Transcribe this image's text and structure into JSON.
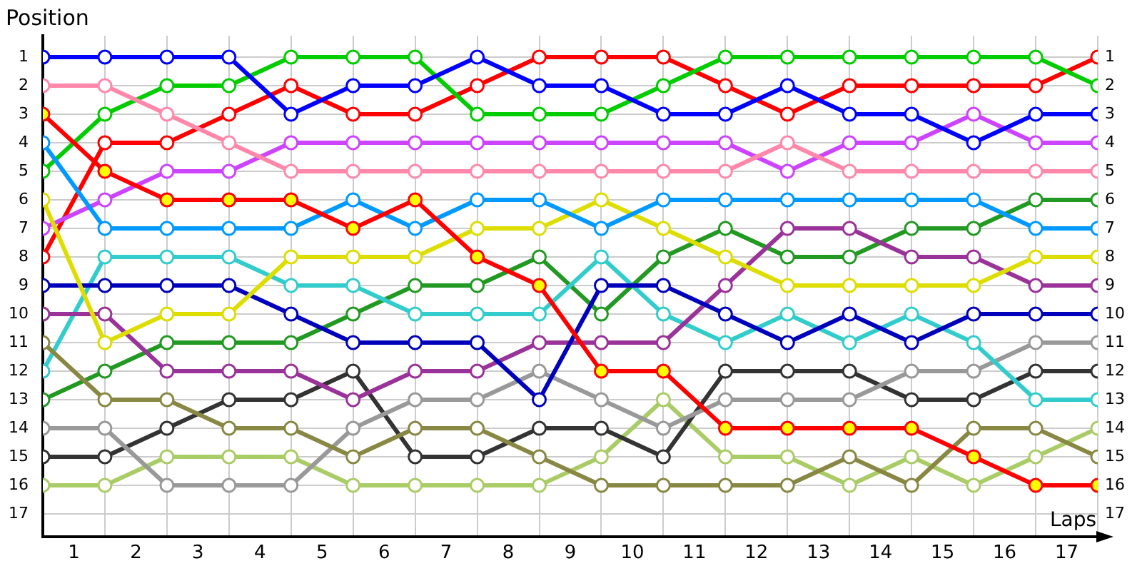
{
  "chart_data": {
    "type": "line",
    "xlabel": "Laps",
    "ylabel": "Position",
    "x": [
      0,
      1,
      2,
      3,
      4,
      5,
      6,
      7,
      8,
      9,
      10,
      11,
      12,
      13,
      14,
      15,
      16,
      17
    ],
    "series": [
      {
        "color": "#0000ff",
        "values": [
          1,
          1,
          1,
          1,
          3,
          2,
          2,
          1,
          2,
          2,
          3,
          3,
          2,
          3,
          3,
          4,
          3,
          3
        ]
      },
      {
        "color": "#ff88aa",
        "values": [
          2,
          2,
          3,
          4,
          5,
          5,
          5,
          5,
          5,
          5,
          5,
          5,
          4,
          5,
          5,
          5,
          5,
          5
        ]
      },
      {
        "color": "#ff0000",
        "colors": [
          "#ffff00",
          "#ffff00",
          "#ffff00",
          "#ffff00",
          "#ffff00",
          "#ffff00",
          "#ffff00",
          "#ffff00",
          "#ffff00",
          "#ffff00",
          "#ffff00",
          "#ffff00",
          "#ffff00",
          "#ffff00",
          "#ffff00",
          "#ffff00",
          "#ffff00",
          "#ffff00"
        ],
        "values": [
          3,
          5,
          6,
          6,
          6,
          7,
          6,
          8,
          9,
          12,
          12,
          14,
          14,
          14,
          14,
          15,
          16,
          16
        ]
      },
      {
        "color": "#0099ff",
        "values": [
          4,
          7,
          7,
          7,
          7,
          6,
          7,
          6,
          6,
          7,
          6,
          6,
          6,
          6,
          6,
          6,
          7,
          7
        ]
      },
      {
        "color": "#00cc00",
        "values": [
          5,
          3,
          2,
          2,
          1,
          1,
          1,
          3,
          3,
          3,
          2,
          1,
          1,
          1,
          1,
          1,
          1,
          2
        ]
      },
      {
        "color": "#dddd00",
        "values": [
          6,
          11,
          10,
          10,
          8,
          8,
          8,
          7,
          7,
          6,
          7,
          8,
          9,
          9,
          9,
          9,
          8,
          8
        ]
      },
      {
        "color": "#cc44ff",
        "values": [
          7,
          6,
          5,
          5,
          4,
          4,
          4,
          4,
          4,
          4,
          4,
          4,
          5,
          4,
          4,
          3,
          4,
          4
        ]
      },
      {
        "color": "#ff0000",
        "values": [
          8,
          4,
          4,
          3,
          2,
          3,
          3,
          2,
          1,
          1,
          1,
          2,
          3,
          2,
          2,
          2,
          2,
          1
        ]
      },
      {
        "color": "#0000bb",
        "values": [
          9,
          9,
          9,
          9,
          10,
          11,
          11,
          11,
          13,
          9,
          9,
          10,
          11,
          10,
          11,
          10,
          10,
          10
        ]
      },
      {
        "color": "#993399",
        "values": [
          10,
          10,
          12,
          12,
          12,
          13,
          12,
          12,
          11,
          11,
          11,
          9,
          7,
          7,
          8,
          8,
          9,
          9
        ]
      },
      {
        "color": "#888844",
        "values": [
          11,
          13,
          13,
          14,
          14,
          15,
          14,
          14,
          15,
          16,
          16,
          16,
          16,
          15,
          16,
          14,
          14,
          15
        ]
      },
      {
        "color": "#33cccc",
        "values": [
          12,
          8,
          8,
          8,
          9,
          9,
          10,
          10,
          10,
          8,
          10,
          11,
          10,
          11,
          10,
          11,
          13,
          13
        ]
      },
      {
        "color": "#229922",
        "values": [
          13,
          12,
          11,
          11,
          11,
          10,
          9,
          9,
          8,
          10,
          8,
          7,
          8,
          8,
          7,
          7,
          6,
          6
        ]
      },
      {
        "color": "#999999",
        "values": [
          14,
          14,
          16,
          16,
          16,
          14,
          13,
          13,
          12,
          13,
          14,
          13,
          13,
          13,
          12,
          12,
          11,
          11
        ]
      },
      {
        "color": "#333333",
        "values": [
          15,
          15,
          14,
          13,
          13,
          12,
          15,
          15,
          14,
          14,
          15,
          12,
          12,
          12,
          13,
          13,
          12,
          12
        ]
      },
      {
        "color": "#aacc66",
        "values": [
          16,
          16,
          15,
          15,
          15,
          16,
          16,
          16,
          16,
          15,
          13,
          15,
          15,
          16,
          15,
          16,
          15,
          14
        ]
      }
    ],
    "xlim": [
      0,
      17
    ],
    "xticks": [
      {
        "value": 0,
        "label": null
      },
      {
        "value": 0.5,
        "label": "1"
      },
      {
        "value": 1,
        "label": null
      },
      {
        "value": 1.5,
        "label": "2"
      },
      {
        "value": 2,
        "label": null
      },
      {
        "value": 2.5,
        "label": "3"
      },
      {
        "value": 3,
        "label": null
      },
      {
        "value": 3.5,
        "label": "4"
      },
      {
        "value": 4,
        "label": null
      },
      {
        "value": 4.5,
        "label": "5"
      },
      {
        "value": 5,
        "label": null
      },
      {
        "value": 5.5,
        "label": "6"
      },
      {
        "value": 6,
        "label": null
      },
      {
        "value": 6.5,
        "label": "7"
      },
      {
        "value": 7,
        "label": null
      },
      {
        "value": 7.5,
        "label": "8"
      },
      {
        "value": 8,
        "label": null
      },
      {
        "value": 8.5,
        "label": "9"
      },
      {
        "value": 9,
        "label": null
      },
      {
        "value": 9.5,
        "label": "10"
      },
      {
        "value": 10,
        "label": null
      },
      {
        "value": 10.5,
        "label": "11"
      },
      {
        "value": 11,
        "label": null
      },
      {
        "value": 11.5,
        "label": "12"
      },
      {
        "value": 12,
        "label": null
      },
      {
        "value": 12.5,
        "label": "13"
      },
      {
        "value": 13,
        "label": null
      },
      {
        "value": 13.5,
        "label": "14"
      },
      {
        "value": 14,
        "label": null
      },
      {
        "value": 14.5,
        "label": "15"
      },
      {
        "value": 15,
        "label": null
      },
      {
        "value": 15.5,
        "label": "16"
      },
      {
        "value": 16,
        "label": null
      },
      {
        "value": 16.5,
        "label": "17"
      },
      {
        "value": 17,
        "label": null
      }
    ],
    "ylim": [
      17.8,
      0.25
    ],
    "yticks": [
      1,
      2,
      3,
      4,
      5,
      6,
      7,
      8,
      9,
      10,
      11,
      12,
      13,
      14,
      15,
      16,
      17
    ],
    "y2lim": [
      17.8,
      0.25
    ],
    "y2ticks": [
      1,
      2,
      3,
      4,
      5,
      6,
      7,
      8,
      9,
      10,
      11,
      12,
      13,
      14,
      15,
      16,
      17
    ],
    "grid": true,
    "legend": false,
    "marker": "circle",
    "line_style": "solid"
  }
}
